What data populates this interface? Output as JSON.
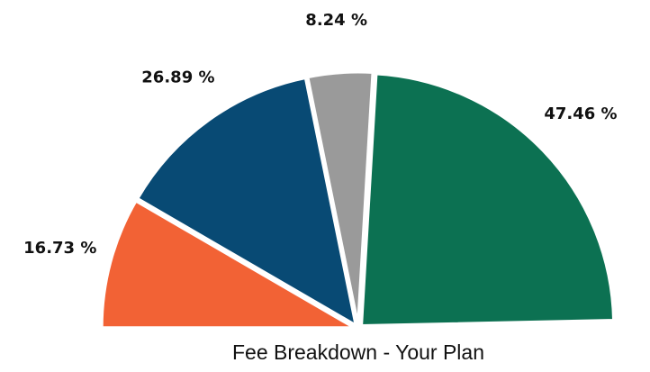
{
  "chart_data": {
    "type": "pie",
    "title": "Fee Breakdown - Your Plan",
    "values": [
      16.73,
      26.89,
      8.24,
      47.46
    ],
    "value_labels": [
      "16.73 %",
      "26.89 %",
      "8.24 %",
      "47.46 %"
    ],
    "colors": [
      "#f26235",
      "#084a74",
      "#9a9a9a",
      "#0c7152"
    ]
  }
}
